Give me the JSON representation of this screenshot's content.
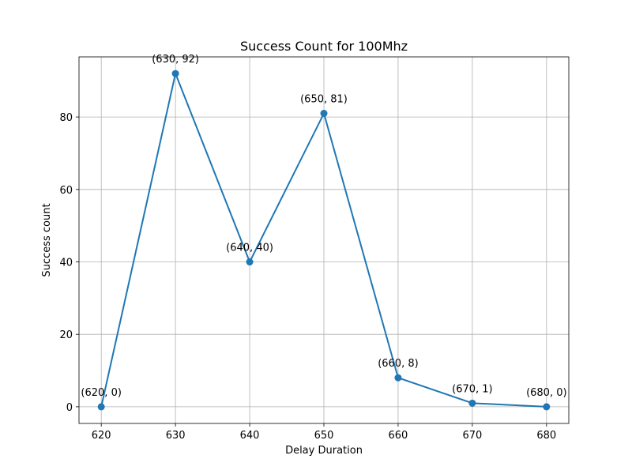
{
  "chart_data": {
    "type": "line",
    "title": "Success Count for 100Mhz",
    "xlabel": "Delay Duration",
    "ylabel": "Success count",
    "x": [
      620,
      630,
      640,
      650,
      660,
      670,
      680
    ],
    "series": [
      {
        "values": [
          0,
          92,
          40,
          81,
          8,
          1,
          0
        ],
        "color": "#1f77b4"
      }
    ],
    "data_labels": [
      "(620, 0)",
      "(630, 92)",
      "(640, 40)",
      "(650, 81)",
      "(660, 8)",
      "(670, 1)",
      "(680, 0)"
    ],
    "xticks": [
      620,
      630,
      640,
      650,
      660,
      670,
      680
    ],
    "yticks": [
      0,
      20,
      40,
      60,
      80
    ],
    "xlim": [
      617,
      683
    ],
    "ylim": [
      -4.6,
      96.6
    ],
    "grid": true,
    "legend": "none"
  }
}
